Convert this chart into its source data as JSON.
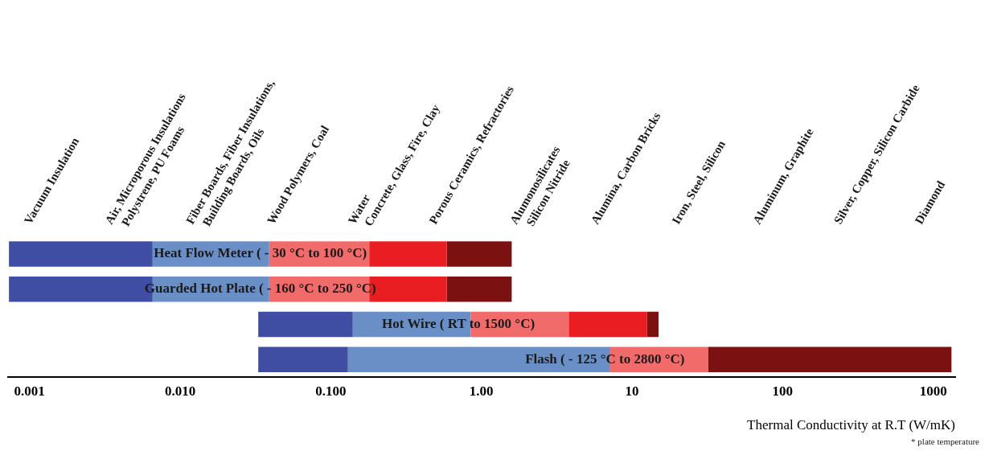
{
  "chart_data": {
    "type": "bar",
    "orientation": "horizontal",
    "log": "x",
    "categories": [
      "Heat Flow Meter ( - 30 °C to 100 °C)",
      "Guarded Hot Plate ( - 160 °C to 250 °C)",
      "Hot Wire ( RT to 1500 °C)",
      "Flash ( - 125 °C to 2800 °C)"
    ],
    "series": [
      {
        "color": "#3f4ea3",
        "base": [
          0.00073,
          0.00073,
          0.033,
          0.033
        ],
        "values": [
          0.0058,
          0.0058,
          0.107,
          0.097
        ]
      },
      {
        "color": "#6a8fc6",
        "base": [
          0.0065,
          0.0065,
          0.14,
          0.13
        ],
        "values": [
          0.0325,
          0.0325,
          0.71,
          7.0
        ]
      },
      {
        "color": "#f26b6b",
        "base": [
          0.039,
          0.039,
          0.85,
          7.1
        ],
        "values": [
          0.141,
          0.141,
          2.95,
          25
        ]
      },
      {
        "color": "#e81e23",
        "base": [
          0.18,
          0.18,
          3.8,
          null
        ],
        "values": [
          0.41,
          0.41,
          8.8,
          null
        ]
      },
      {
        "color": "#7b1111",
        "base": [
          0.59,
          0.59,
          12.6,
          32
        ],
        "values": [
          1.0,
          1.0,
          2.4,
          1290
        ]
      }
    ],
    "xlim": [
      0.00072,
      1400
    ],
    "xticks": [
      0.001,
      {
        "value": 0.01,
        "label": "0.010"
      },
      {
        "value": 0.1,
        "label": "0.100"
      },
      {
        "value": 1,
        "label": "1.00"
      },
      10,
      100,
      1000
    ],
    "xlabel": "Thermal Conductivity at R.T (W/mK)",
    "grid": false,
    "legend": false,
    "tick_labels": "x",
    "annotations": [
      "Vacuum Insulation",
      "Air, Microporous Insulations\nPolystrene, PU Foams",
      "Fiber Boards, Fiber Insulations,\nBuilding Boards, Oils",
      "Wood Polymers, Coal",
      "Water\nConcrete, Glass, Fire, Clay",
      "Porous Ceramics, Refractories",
      "Alumonosilicates\nSilicon Nitride",
      "Alumina, Carbon Bricks",
      "Iron, Steel, Silicon",
      "Aluminum, Graphite",
      "Silver, Copper, Silicon Carbide",
      "Diamond",
      "* plate temperature"
    ]
  }
}
